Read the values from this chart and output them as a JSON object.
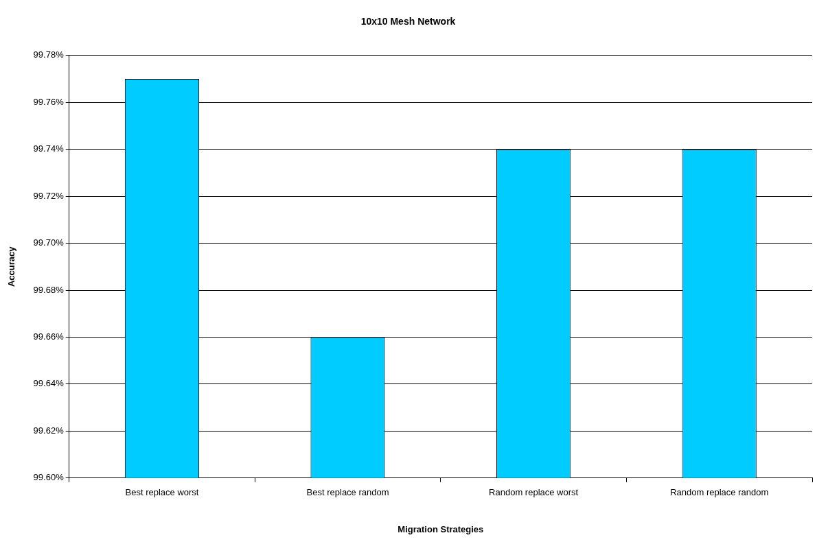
{
  "chart_data": {
    "type": "bar",
    "title": "10x10 Mesh Network",
    "xlabel": "Migration Strategies",
    "ylabel": "Accuracy",
    "categories": [
      "Best replace worst",
      "Best replace random",
      "Random replace worst",
      "Random replace random"
    ],
    "values": [
      99.77,
      99.66,
      99.74,
      99.74
    ],
    "color": "#00ccff",
    "ylim": [
      99.6,
      99.78
    ],
    "yticks": [
      {
        "value": 99.6,
        "label": "99.60%"
      },
      {
        "value": 99.62,
        "label": "99.62%"
      },
      {
        "value": 99.64,
        "label": "99.64%"
      },
      {
        "value": 99.66,
        "label": "99.66%"
      },
      {
        "value": 99.68,
        "label": "99.68%"
      },
      {
        "value": 99.7,
        "label": "99.70%"
      },
      {
        "value": 99.72,
        "label": "99.72%"
      },
      {
        "value": 99.74,
        "label": "99.74%"
      },
      {
        "value": 99.76,
        "label": "99.76%"
      },
      {
        "value": 99.78,
        "label": "99.78%"
      }
    ],
    "grid": "y",
    "legend": false
  }
}
